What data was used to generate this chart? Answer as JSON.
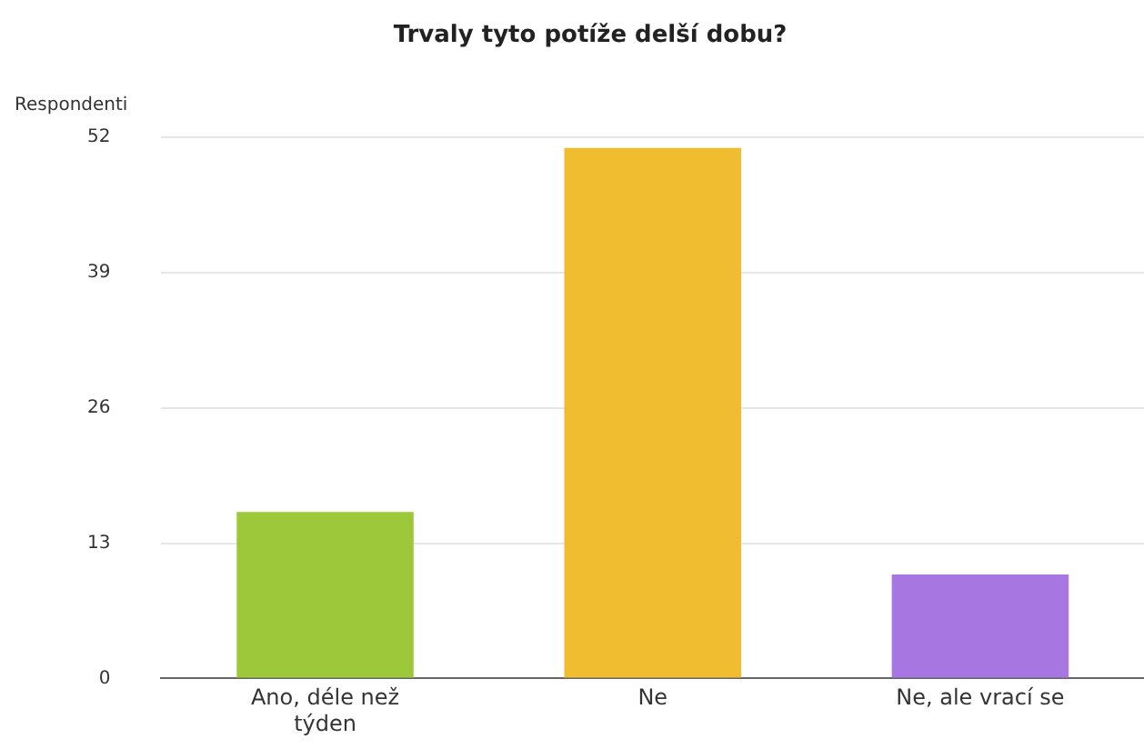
{
  "chart_data": {
    "type": "bar",
    "title": "Trvaly tyto potíže delší dobu?",
    "ylabel": "Respondenti",
    "categories": [
      "Ano, déle než týden",
      "Ne",
      "Ne, ale vrací se"
    ],
    "values": [
      16,
      51,
      10
    ],
    "colors": [
      "#9cc83a",
      "#f0bc30",
      "#a876e0"
    ],
    "ylim": [
      0,
      52
    ],
    "yticks": [
      0,
      13,
      26,
      39,
      52
    ],
    "grid": "y",
    "legend": false
  }
}
